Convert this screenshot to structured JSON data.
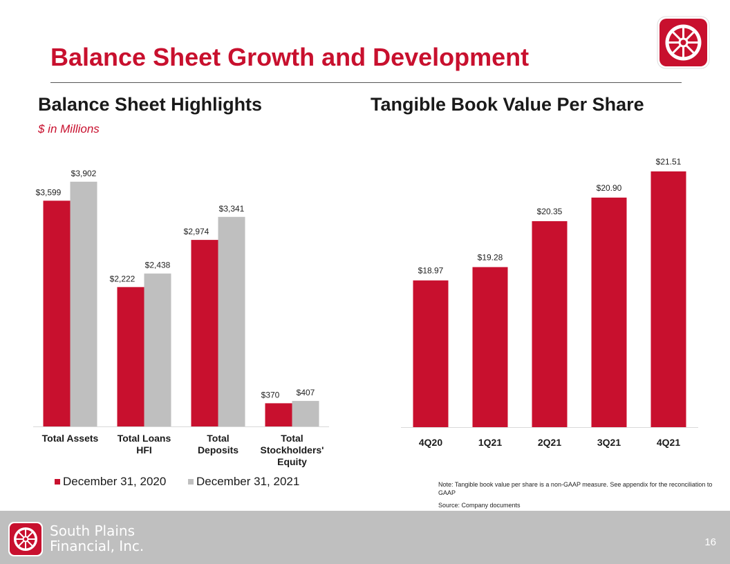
{
  "header": {
    "title": "Balance Sheet Growth and Development"
  },
  "left_panel": {
    "heading": "Balance Sheet Highlights",
    "units": "$ in Millions"
  },
  "right_panel": {
    "heading": "Tangible Book Value Per Share",
    "note": "Note: Tangible book value per share is a non-GAAP measure. See appendix for the reconciliation to GAAP",
    "source": "Source: Company documents"
  },
  "footer": {
    "company_line1": "South Plains",
    "company_line2": "Financial, Inc.",
    "page_number": "16"
  },
  "colors": {
    "brand_red": "#c8102e",
    "series_gray": "#bfbfbf",
    "footer_gray": "#bfbfbf"
  },
  "chart_data": [
    {
      "type": "bar",
      "categories": [
        "Total Assets",
        "Total Loans HFI",
        "Total Deposits",
        "Total Stockholders' Equity"
      ],
      "category_lines": [
        [
          "Total Assets"
        ],
        [
          "Total Loans",
          "HFI"
        ],
        [
          "Total",
          "Deposits"
        ],
        [
          "Total",
          "Stockholders'",
          "Equity"
        ]
      ],
      "series": [
        {
          "name": "December 31, 2020",
          "values": [
            3599,
            2222,
            2974,
            370
          ],
          "labels": [
            "$3,599",
            "$2,222",
            "$2,974",
            "$370"
          ],
          "color": "#c8102e"
        },
        {
          "name": "December 31, 2021",
          "values": [
            3902,
            2438,
            3341,
            407
          ],
          "labels": [
            "$3,902",
            "$2,438",
            "$3,341",
            "$407"
          ],
          "color": "#bfbfbf"
        }
      ],
      "ylim": [
        0,
        4650
      ],
      "legend": "bottom",
      "grid": false
    },
    {
      "type": "bar",
      "categories": [
        "4Q20",
        "1Q21",
        "2Q21",
        "3Q21",
        "4Q21"
      ],
      "values": [
        18.97,
        19.28,
        20.35,
        20.9,
        21.51
      ],
      "labels": [
        "$18.97",
        "$19.28",
        "$20.35",
        "$20.90",
        "$21.51"
      ],
      "color": "#c8102e",
      "ylim": [
        15.55,
        21.8
      ],
      "grid": false
    }
  ]
}
